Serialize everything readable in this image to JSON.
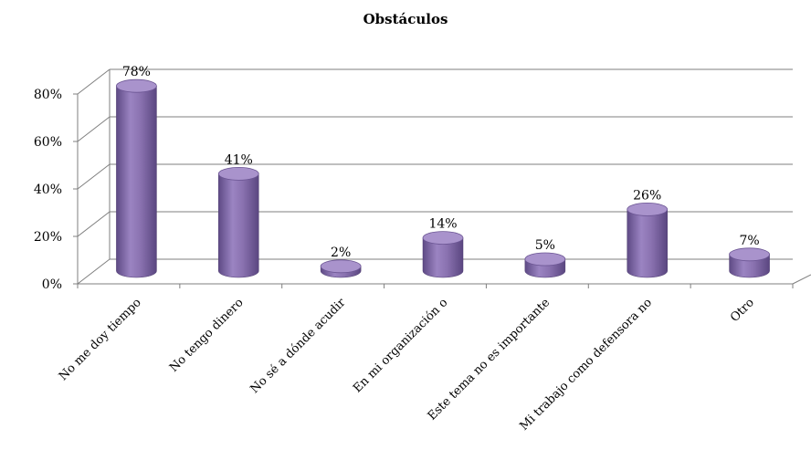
{
  "chart_data": {
    "type": "bar",
    "title": "Obstáculos",
    "categories": [
      "No me doy tiempo",
      "No tengo dinero",
      "No sé a dónde acudir",
      "En mi organización o",
      "Este tema no es importante",
      "Mi trabajo como defensora no",
      "Otro"
    ],
    "values": [
      78,
      41,
      2,
      14,
      5,
      26,
      7
    ],
    "data_labels": [
      "78%",
      "41%",
      "2%",
      "14%",
      "5%",
      "26%",
      "7%"
    ],
    "ylim": [
      0,
      80
    ],
    "yticks": [
      0,
      20,
      40,
      60,
      80
    ],
    "ytick_labels": [
      "0%",
      "20%",
      "40%",
      "60%",
      "80%"
    ],
    "grid": true,
    "style": "3d-cylinder",
    "colors": {
      "bar": "#8a72b0",
      "bar_dark": "#5e4a85",
      "bar_top": "#a993cc",
      "grid": "#7f7f7f"
    }
  }
}
